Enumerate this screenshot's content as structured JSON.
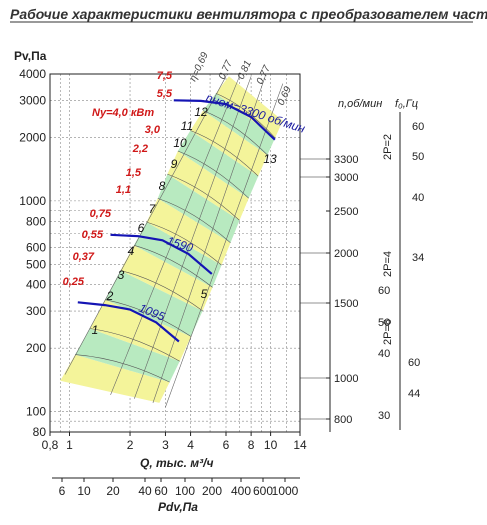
{
  "chart_data": {
    "type": "line",
    "title": "Рабочие характеристики вентилятора с преобразователем частоты",
    "ylabel": "Pv,Па",
    "xlabel": "Q, тыс. м³/ч",
    "x2label": "Pdv,Па",
    "x_scale": "log",
    "y_scale": "log",
    "xlim": [
      0.8,
      14
    ],
    "ylim": [
      80,
      4000
    ],
    "x_ticks": [
      "0,8",
      "1",
      "2",
      "3",
      "4",
      "6",
      "8",
      "10",
      "14"
    ],
    "y_ticks": [
      "4000",
      "3000",
      "2000",
      "1000",
      "800",
      "600",
      "500",
      "400",
      "300",
      "200",
      "100",
      "80"
    ],
    "pdv_ticks": [
      "6",
      "10",
      "20",
      "40",
      "60",
      "100",
      "200",
      "400",
      "600",
      "1000"
    ],
    "pdv_values": [
      6,
      10,
      20,
      40,
      60,
      100,
      200,
      400,
      600,
      1000
    ],
    "speed_label": "n,об/мин",
    "freq_label": "f₀,Гц",
    "speed_ticks": [
      "3300",
      "3000",
      "2500",
      "2000",
      "1500",
      "1000",
      "800"
    ],
    "speed_values": [
      3300,
      3000,
      2500,
      2000,
      1500,
      1000,
      800
    ],
    "pole_groups": [
      {
        "label": "2P=2",
        "ticks": [
          "60",
          "50",
          "40"
        ],
        "values": [
          60,
          50,
          40
        ]
      },
      {
        "label": "2P=4",
        "ticks": [
          "34",
          "60"
        ],
        "values": [
          34,
          60
        ]
      },
      {
        "label": "2P=6",
        "ticks": [
          "50",
          "60",
          "40",
          "30",
          "44"
        ],
        "values": [
          50,
          60,
          40,
          30,
          44
        ]
      }
    ],
    "power_header": "Nу=4,0 кВт",
    "power_labels": [
      "7,5",
      "5,5",
      "3,0",
      "2,2",
      "1,5",
      "1,1",
      "0,75",
      "0,55",
      "0,37",
      "0,25"
    ],
    "efficiency_labels": [
      "η=0,69",
      "0,77",
      "0,81",
      "0,77",
      "0,69"
    ],
    "speed_curves": [
      {
        "label": "nном=3300 об/мин",
        "n": 3300
      },
      {
        "label": "1590",
        "n": 1590
      },
      {
        "label": "1095",
        "n": 1095
      }
    ],
    "zone_labels": [
      "1",
      "2",
      "3",
      "4",
      "5",
      "6",
      "7",
      "8",
      "9",
      "10",
      "11",
      "12",
      "13"
    ],
    "series": [
      {
        "rpm": 3300,
        "x": [
          3.3,
          4.5,
          6.0,
          8.0,
          10.5
        ],
        "y": [
          3000,
          2980,
          2880,
          2500,
          1950
        ]
      },
      {
        "rpm": 1590,
        "x": [
          1.6,
          2.2,
          2.9,
          3.9,
          5.1
        ],
        "y": [
          690,
          680,
          650,
          560,
          450
        ]
      },
      {
        "rpm": 1095,
        "x": [
          1.1,
          1.5,
          2.0,
          2.7,
          3.5
        ],
        "y": [
          330,
          320,
          305,
          265,
          215
        ]
      }
    ]
  }
}
